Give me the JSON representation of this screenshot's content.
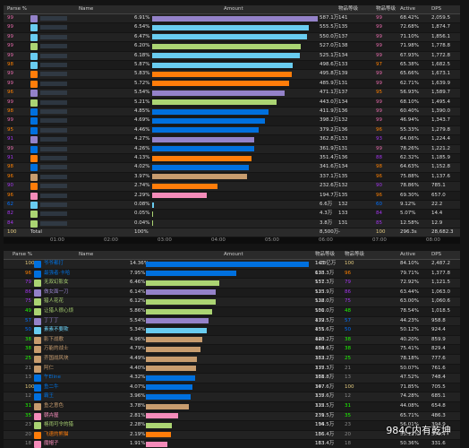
{
  "top": {
    "headers": [
      "Parse %",
      "Name",
      "Amount",
      "物品等级",
      "物品等级",
      "Active",
      "DPS"
    ],
    "rows": [
      {
        "parse": 99,
        "pct": 6.91,
        "pct_label": "6.91%",
        "amount": "587.1万",
        "ilvl": 141,
        "ilvl_parse": 99,
        "active": "68.42%",
        "dps": "2,059.5",
        "color": "#9482c9"
      },
      {
        "parse": 99,
        "pct": 6.54,
        "pct_label": "6.54%",
        "amount": "555.5万",
        "ilvl": 135,
        "ilvl_parse": 99,
        "active": "72.68%",
        "dps": "1,874.7",
        "color": "#69ccf0"
      },
      {
        "parse": 99,
        "pct": 6.47,
        "pct_label": "6.47%",
        "amount": "550.0万",
        "ilvl": 137,
        "ilvl_parse": 99,
        "active": "71.10%",
        "dps": "1,856.1",
        "color": "#69ccf0"
      },
      {
        "parse": 99,
        "pct": 6.2,
        "pct_label": "6.20%",
        "amount": "527.0万",
        "ilvl": 138,
        "ilvl_parse": 99,
        "active": "71.98%",
        "dps": "1,778.8",
        "color": "#abd473"
      },
      {
        "parse": 99,
        "pct": 6.18,
        "pct_label": "6.18%",
        "amount": "525.1万",
        "ilvl": 134,
        "ilvl_parse": 99,
        "active": "67.93%",
        "dps": "1,772.8",
        "color": "#69ccf0"
      },
      {
        "parse": 98,
        "pct": 5.87,
        "pct_label": "5.87%",
        "amount": "498.6万",
        "ilvl": 133,
        "ilvl_parse": 97,
        "active": "65.38%",
        "dps": "1,682.5",
        "color": "#69ccf0"
      },
      {
        "parse": 99,
        "pct": 5.83,
        "pct_label": "5.83%",
        "amount": "495.8万",
        "ilvl": 139,
        "ilvl_parse": 99,
        "active": "65.66%",
        "dps": "1,673.1",
        "color": "#ff7d0a"
      },
      {
        "parse": 99,
        "pct": 5.72,
        "pct_label": "5.72%",
        "amount": "485.9万",
        "ilvl": 131,
        "ilvl_parse": 99,
        "active": "62.71%",
        "dps": "1,639.9",
        "color": "#ff7d0a"
      },
      {
        "parse": 96,
        "pct": 5.54,
        "pct_label": "5.54%",
        "amount": "471.1万",
        "ilvl": 137,
        "ilvl_parse": 95,
        "active": "56.93%",
        "dps": "1,589.7",
        "color": "#9482c9"
      },
      {
        "parse": 99,
        "pct": 5.21,
        "pct_label": "5.21%",
        "amount": "443.0万",
        "ilvl": 134,
        "ilvl_parse": 99,
        "active": "68.10%",
        "dps": "1,495.4",
        "color": "#abd473"
      },
      {
        "parse": 98,
        "pct": 4.85,
        "pct_label": "4.85%",
        "amount": "411.9万",
        "ilvl": 136,
        "ilvl_parse": 99,
        "active": "60.40%",
        "dps": "1,390.0",
        "color": "#0070de"
      },
      {
        "parse": 99,
        "pct": 4.69,
        "pct_label": "4.69%",
        "amount": "398.2万",
        "ilvl": 132,
        "ilvl_parse": 99,
        "active": "46.94%",
        "dps": "1,343.7",
        "color": "#0070de"
      },
      {
        "parse": 95,
        "pct": 4.46,
        "pct_label": "4.46%",
        "amount": "379.2万",
        "ilvl": 136,
        "ilvl_parse": 96,
        "active": "55.33%",
        "dps": "1,279.8",
        "color": "#0070de"
      },
      {
        "parse": 91,
        "pct": 4.27,
        "pct_label": "4.27%",
        "amount": "362.8万",
        "ilvl": 133,
        "ilvl_parse": 93,
        "active": "64.06%",
        "dps": "1,224.4",
        "color": "#9482c9"
      },
      {
        "parse": 99,
        "pct": 4.26,
        "pct_label": "4.26%",
        "amount": "361.9万",
        "ilvl": 131,
        "ilvl_parse": 99,
        "active": "78.26%",
        "dps": "1,221.2",
        "color": "#0070de"
      },
      {
        "parse": 91,
        "pct": 4.13,
        "pct_label": "4.13%",
        "amount": "351.4万",
        "ilvl": 136,
        "ilvl_parse": 88,
        "active": "62.32%",
        "dps": "1,185.9",
        "color": "#ff7d0a"
      },
      {
        "parse": 98,
        "pct": 4.02,
        "pct_label": "4.02%",
        "amount": "341.6万",
        "ilvl": 134,
        "ilvl_parse": 98,
        "active": "64.63%",
        "dps": "1,152.8",
        "color": "#0070de"
      },
      {
        "parse": 96,
        "pct": 3.97,
        "pct_label": "3.97%",
        "amount": "337.1万",
        "ilvl": 135,
        "ilvl_parse": 96,
        "active": "75.88%",
        "dps": "1,137.6",
        "color": "#c79c6e"
      },
      {
        "parse": 90,
        "pct": 2.74,
        "pct_label": "2.74%",
        "amount": "232.6万",
        "ilvl": 132,
        "ilvl_parse": 90,
        "active": "78.86%",
        "dps": "785.1",
        "color": "#ff7d0a"
      },
      {
        "parse": 96,
        "pct": 2.29,
        "pct_label": "2.29%",
        "amount": "194.7万",
        "ilvl": 135,
        "ilvl_parse": 96,
        "active": "69.30%",
        "dps": "657.0",
        "color": "#f58cba"
      },
      {
        "parse": 62,
        "pct": 0.08,
        "pct_label": "0.08%",
        "amount": "6.6万",
        "ilvl": 132,
        "ilvl_parse": 60,
        "active": "9.12%",
        "dps": "22.2",
        "color": "#69ccf0"
      },
      {
        "parse": 82,
        "pct": 0.05,
        "pct_label": "0.05%",
        "amount": "4.3万",
        "ilvl": 133,
        "ilvl_parse": 84,
        "active": "5.07%",
        "dps": "14.4",
        "color": "#abd473"
      },
      {
        "parse": 84,
        "pct": 0.04,
        "pct_label": "0.04%",
        "amount": "3.8万",
        "ilvl": 131,
        "ilvl_parse": 85,
        "active": "12.58%",
        "dps": "12.9",
        "color": "#abd473"
      }
    ],
    "total": {
      "parse": "100",
      "name": "Total",
      "pct": "100%",
      "amount": "8,500万",
      "ilvl": "-",
      "ilvl_parse": "100",
      "active": "296.3s",
      "dps": "28,682.3"
    },
    "timeline": [
      "01:00",
      "02:00",
      "03:00",
      "04:00",
      "05:00",
      "06:00",
      "07:00",
      "08:00"
    ]
  },
  "bottom": {
    "headers": [
      "Parse %",
      "Name",
      "Amount",
      "物品等级",
      "物品等级",
      "Active",
      "DPS"
    ],
    "rows": [
      {
        "parse": 100,
        "name": "爷爷都打",
        "pct": 14.36,
        "pct_label": "14.36%",
        "amount": "1.23亿万",
        "ilvl": 143,
        "ilvl_parse": 100,
        "active": "84.10%",
        "dps": "2,487.2",
        "color": "#0070de"
      },
      {
        "parse": 96,
        "name": "最强者·卡哈",
        "pct": 7.95,
        "pct_label": "7.95%",
        "amount": "678.3万",
        "ilvl": 133,
        "ilvl_parse": 96,
        "active": "79.71%",
        "dps": "1,377.8",
        "color": "#0070de"
      },
      {
        "parse": 79,
        "name": "无双幻影女",
        "pct": 6.46,
        "pct_label": "6.46%",
        "amount": "551.3万",
        "ilvl": 137,
        "ilvl_parse": 79,
        "active": "72.92%",
        "dps": "1,121.5",
        "color": "#abd473"
      },
      {
        "parse": 86,
        "name": "做女面一刀",
        "pct": 6.14,
        "pct_label": "6.14%",
        "amount": "523.9万",
        "ilvl": 135,
        "ilvl_parse": 86,
        "active": "63.44%",
        "dps": "1,063.0",
        "color": "#9482c9"
      },
      {
        "parse": 75,
        "name": "猎人花花",
        "pct": 6.12,
        "pct_label": "6.12%",
        "amount": "522.0万",
        "ilvl": 138,
        "ilvl_parse": 75,
        "active": "63.00%",
        "dps": "1,060.6",
        "color": "#abd473"
      },
      {
        "parse": 49,
        "name": "让猎人很心烦",
        "pct": 5.86,
        "pct_label": "5.86%",
        "amount": "500.0万",
        "ilvl": 131,
        "ilvl_parse": 48,
        "active": "78.54%",
        "dps": "1,018.5",
        "color": "#abd473"
      },
      {
        "parse": 57,
        "name": "丁丁丁",
        "pct": 5.54,
        "pct_label": "5.54%",
        "amount": "472.5万",
        "ilvl": 139,
        "ilvl_parse": 57,
        "active": "44.23%",
        "dps": "958.8",
        "color": "#9482c9"
      },
      {
        "parse": 50,
        "name": "素素不要欺",
        "pct": 5.34,
        "pct_label": "5.34%",
        "amount": "455.6万",
        "ilvl": 131,
        "ilvl_parse": 50,
        "active": "50.12%",
        "dps": "924.4",
        "color": "#69ccf0"
      },
      {
        "parse": 38,
        "name": "影下战歌",
        "pct": 4.96,
        "pct_label": "4.96%",
        "amount": "423.2万",
        "ilvl": 140,
        "ilvl_parse": 38,
        "active": "40.20%",
        "dps": "859.9",
        "color": "#c79c6e"
      },
      {
        "parse": 38,
        "name": "万能的战士",
        "pct": 4.79,
        "pct_label": "4.79%",
        "amount": "408.6万",
        "ilvl": 134,
        "ilvl_parse": 38,
        "active": "75.41%",
        "dps": "829.4",
        "color": "#c79c6e"
      },
      {
        "parse": 25,
        "name": "齐国战风块",
        "pct": 4.49,
        "pct_label": "4.49%",
        "amount": "383.2万",
        "ilvl": 132,
        "ilvl_parse": 25,
        "active": "78.18%",
        "dps": "777.6",
        "color": "#c79c6e"
      },
      {
        "parse": 21,
        "name": "阿仁",
        "pct": 4.4,
        "pct_label": "4.40%",
        "amount": "375.3万",
        "ilvl": 137,
        "ilvl_parse": 21,
        "active": "50.07%",
        "dps": "761.6",
        "color": "#c79c6e"
      },
      {
        "parse": 13,
        "name": "午Eline",
        "pct": 4.32,
        "pct_label": "4.32%",
        "amount": "368.8万",
        "ilvl": 131,
        "ilvl_parse": 13,
        "active": "47.52%",
        "dps": "748.4",
        "color": "#0070de"
      },
      {
        "parse": 100,
        "name": "鱼二牛",
        "pct": 4.07,
        "pct_label": "4.07%",
        "amount": "347.6万",
        "ilvl": 107,
        "ilvl_parse": 100,
        "active": "71.85%",
        "dps": "705.5",
        "color": "#0070de"
      },
      {
        "parse": 12,
        "name": "霸王",
        "pct": 3.96,
        "pct_label": "3.96%",
        "amount": "337.6万",
        "ilvl": 135,
        "ilvl_parse": 12,
        "active": "74.28%",
        "dps": "685.1",
        "color": "#0070de"
      },
      {
        "parse": 31,
        "name": "鱼之意色",
        "pct": 3.78,
        "pct_label": "3.78%",
        "amount": "322.5万",
        "ilvl": 135,
        "ilvl_parse": 31,
        "active": "44.08%",
        "dps": "654.8",
        "color": "#c79c6e"
      },
      {
        "parse": 35,
        "name": "朝卉屋",
        "pct": 2.81,
        "pct_label": "2.81%",
        "amount": "239.5万",
        "ilvl": 131,
        "ilvl_parse": 35,
        "active": "65.71%",
        "dps": "486.3",
        "color": "#f58cba"
      },
      {
        "parse": 23,
        "name": "格雨可令的猎",
        "pct": 2.28,
        "pct_label": "2.28%",
        "amount": "194.5万",
        "ilvl": 136,
        "ilvl_parse": 23,
        "active": "56.01%",
        "dps": "394.9",
        "color": "#abd473"
      },
      {
        "parse": 20,
        "name": "飞速的熊猫",
        "pct": 2.19,
        "pct_label": "2.19%",
        "amount": "186.4万",
        "ilvl": 136,
        "ilvl_parse": 20,
        "active": "55.12%",
        "dps": "378.4",
        "color": "#ff7d0a"
      },
      {
        "parse": 18,
        "name": "魔帽子",
        "pct": 1.91,
        "pct_label": "1.91%",
        "amount": "163.4万",
        "ilvl": 133,
        "ilvl_parse": 18,
        "active": "50.36%",
        "dps": "331.6",
        "color": "#f58cba"
      }
    ]
  },
  "watermark": "984C内有乾坤"
}
